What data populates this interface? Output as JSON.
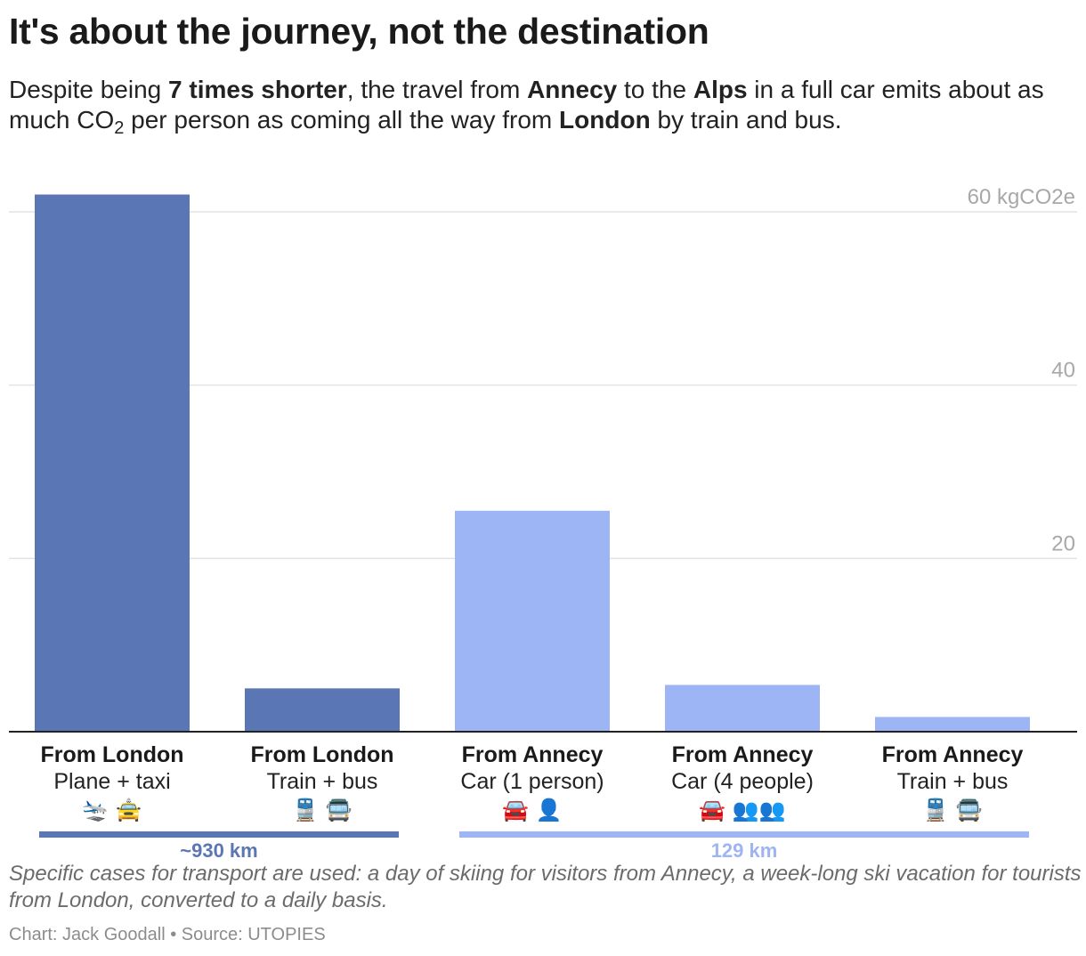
{
  "header": {
    "title": "It's about the journey, not the destination",
    "subtitle": {
      "p1": "Despite being ",
      "b1": "7 times shorter",
      "p2": ", the travel from ",
      "b2": "Annecy",
      "p3": " to the ",
      "b3": "Alps",
      "p4": " in a full car emits about as much CO",
      "sub": "2",
      "p5": " per person as coming all the way from ",
      "b4": "London",
      "p6": " by train and bus."
    }
  },
  "chart_data": {
    "type": "bar",
    "title": "It's about the journey, not the destination",
    "ylabel": "kgCO2e",
    "ylim": [
      0,
      60
    ],
    "yticks": [
      20,
      40,
      60
    ],
    "ytick_labels": [
      "20",
      "40",
      "60 kgCO2e"
    ],
    "grid": true,
    "categories": [
      {
        "label": "From London",
        "sub": "Plane + taxi",
        "icons": "🛬 🚖",
        "value": 62,
        "group": "london"
      },
      {
        "label": "From London",
        "sub": "Train + bus",
        "icons": "🚆 🚍",
        "value": 5,
        "group": "london"
      },
      {
        "label": "From Annecy",
        "sub": "Car (1 person)",
        "icons": "🚘 👤",
        "value": 25.5,
        "group": "annecy"
      },
      {
        "label": "From Annecy",
        "sub": "Car (4 people)",
        "icons": "🚘 👥👥",
        "value": 5.4,
        "group": "annecy"
      },
      {
        "label": "From Annecy",
        "sub": "Train + bus",
        "icons": "🚆 🚍",
        "value": 1.7,
        "group": "annecy"
      }
    ],
    "groups": [
      {
        "id": "london",
        "distance_label": "~930 km",
        "color": "#5b76b5"
      },
      {
        "id": "annecy",
        "distance_label": "129 km",
        "color": "#9db4f5"
      }
    ]
  },
  "footer": {
    "note": "Specific cases for transport are used: a day of skiing for visitors from Annecy, a week-long ski vacation for tourists from London, converted to a daily basis.",
    "credit": "Chart: Jack Goodall • Source: UTOPIES"
  }
}
